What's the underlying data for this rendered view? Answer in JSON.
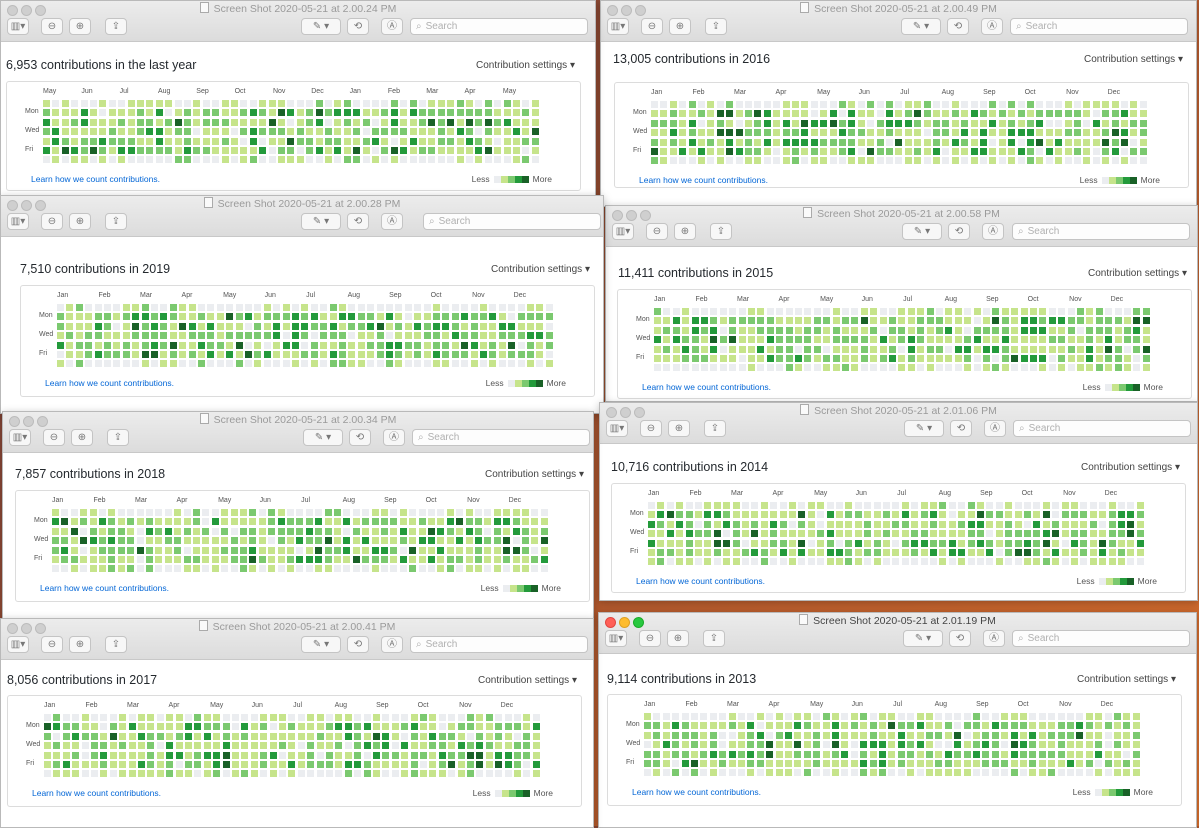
{
  "toolbar": {
    "search_placeholder": "Search",
    "settings_label": "Contribution settings ▾",
    "learn_link": "Learn how we count contributions.",
    "legend_less": "Less",
    "legend_more": "More"
  },
  "colors": {
    "level0": "#ebedf0",
    "level1": "#c6e48b",
    "level2": "#7bc96f",
    "level3": "#239a3b",
    "level4": "#196127"
  },
  "day_labels": [
    "Mon",
    "Wed",
    "Fri"
  ],
  "windows": [
    {
      "title": "Screen Shot 2020-05-21 at 2.00.24 PM",
      "heading": "6,953 contributions in the last year",
      "months": [
        "May",
        "Jun",
        "Jul",
        "Aug",
        "Sep",
        "Oct",
        "Nov",
        "Dec",
        "Jan",
        "Feb",
        "Mar",
        "Apr",
        "May"
      ]
    },
    {
      "title": "Screen Shot 2020-05-21 at 2.00.49 PM",
      "heading": "13,005 contributions in 2016",
      "months": [
        "Jan",
        "Feb",
        "Mar",
        "Apr",
        "May",
        "Jun",
        "Jul",
        "Aug",
        "Sep",
        "Oct",
        "Nov",
        "Dec"
      ]
    },
    {
      "title": "Screen Shot 2020-05-21 at 2.00.28 PM",
      "heading": "7,510 contributions in 2019",
      "months": [
        "Jan",
        "Feb",
        "Mar",
        "Apr",
        "May",
        "Jun",
        "Jul",
        "Aug",
        "Sep",
        "Oct",
        "Nov",
        "Dec"
      ]
    },
    {
      "title": "Screen Shot 2020-05-21 at 2.00.58 PM",
      "heading": "11,411 contributions in 2015",
      "months": [
        "Jan",
        "Feb",
        "Mar",
        "Apr",
        "May",
        "Jun",
        "Jul",
        "Aug",
        "Sep",
        "Oct",
        "Nov",
        "Dec"
      ]
    },
    {
      "title": "Screen Shot 2020-05-21 at 2.00.34 PM",
      "heading": "7,857 contributions in 2018",
      "months": [
        "Jan",
        "Feb",
        "Mar",
        "Apr",
        "May",
        "Jun",
        "Jul",
        "Aug",
        "Sep",
        "Oct",
        "Nov",
        "Dec"
      ]
    },
    {
      "title": "Screen Shot 2020-05-21 at 2.01.06 PM",
      "heading": "10,716 contributions in 2014",
      "months": [
        "Jan",
        "Feb",
        "Mar",
        "Apr",
        "May",
        "Jun",
        "Jul",
        "Aug",
        "Sep",
        "Oct",
        "Nov",
        "Dec"
      ]
    },
    {
      "title": "Screen Shot 2020-05-21 at 2.00.41 PM",
      "heading": "8,056 contributions in 2017",
      "months": [
        "Jan",
        "Feb",
        "Mar",
        "Apr",
        "May",
        "Jun",
        "Jul",
        "Aug",
        "Sep",
        "Oct",
        "Nov",
        "Dec"
      ]
    },
    {
      "title": "Screen Shot 2020-05-21 at 2.01.19 PM",
      "heading": "9,114 contributions in 2013",
      "months": [
        "Jan",
        "Feb",
        "Mar",
        "Apr",
        "May",
        "Jun",
        "Jul",
        "Aug",
        "Sep",
        "Oct",
        "Nov",
        "Dec"
      ]
    }
  ]
}
